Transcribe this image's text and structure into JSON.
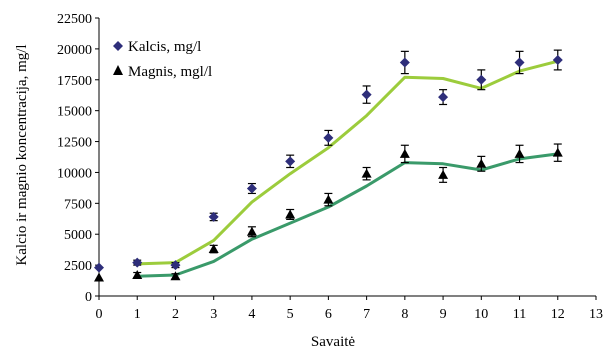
{
  "chart_data": {
    "type": "scatter",
    "xlabel": "Savaitė",
    "ylabel": "Kalcio ir magnio koncentracija, mg/l",
    "xlim": [
      0,
      13
    ],
    "ylim": [
      0,
      22500
    ],
    "xticks": [
      0,
      1,
      2,
      3,
      4,
      5,
      6,
      7,
      8,
      9,
      10,
      11,
      12,
      13
    ],
    "yticks": [
      0,
      2500,
      5000,
      7500,
      10000,
      12500,
      15000,
      17500,
      20000,
      22500
    ],
    "grid": false,
    "legend_position": "top-left",
    "series": [
      {
        "name": "Kalcis, mg/l",
        "marker": "diamond",
        "marker_color": "#2e2e7a",
        "line_color": "#9ccc3c",
        "x": [
          0,
          1,
          2,
          3,
          4,
          5,
          6,
          7,
          8,
          9,
          10,
          11,
          12
        ],
        "y": [
          2300,
          2700,
          2500,
          6400,
          8700,
          10900,
          12800,
          16300,
          18900,
          16100,
          17500,
          18900,
          19100
        ],
        "error": [
          0,
          200,
          200,
          300,
          400,
          500,
          600,
          700,
          900,
          600,
          800,
          900,
          800
        ],
        "trend": [
          null,
          2600,
          2700,
          4500,
          7600,
          9900,
          12000,
          14600,
          17700,
          17600,
          16800,
          18200,
          19000
        ]
      },
      {
        "name": "Magnis, mgl/l",
        "marker": "triangle",
        "marker_color": "#000000",
        "line_color": "#3a9a6a",
        "x": [
          0,
          1,
          2,
          3,
          4,
          5,
          6,
          7,
          8,
          9,
          10,
          11,
          12
        ],
        "y": [
          1500,
          1700,
          1600,
          3800,
          5200,
          6600,
          7800,
          9900,
          11500,
          9800,
          10700,
          11500,
          11600
        ],
        "error": [
          0,
          200,
          200,
          300,
          400,
          400,
          500,
          500,
          700,
          600,
          600,
          700,
          700
        ],
        "trend": [
          null,
          1600,
          1700,
          2800,
          4600,
          5900,
          7200,
          8900,
          10800,
          10700,
          10200,
          11100,
          11500
        ]
      }
    ]
  }
}
